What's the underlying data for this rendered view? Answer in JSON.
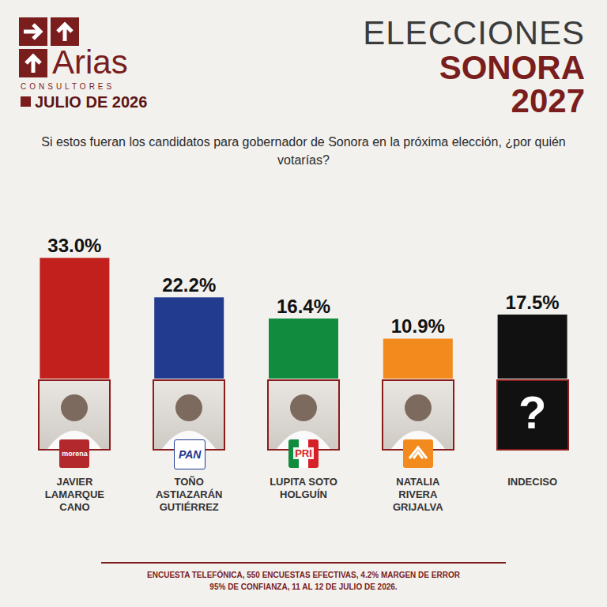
{
  "header": {
    "brand": "Arias",
    "brand_sub": "CONSULTORES",
    "date": "JULIO DE 2026",
    "title_lines": [
      "ELECCIONES",
      "SONORA",
      "2027"
    ]
  },
  "question": "Si estos fueran los candidatos para gobernador de Sonora en la próxima elección, ¿por quién votarías?",
  "chart_data": {
    "type": "bar",
    "categories": [
      "JAVIER LAMARQUE CANO",
      "TOÑO ASTIAZARÁN GUTIÉRREZ",
      "LUPITA SOTO HOLGUÍN",
      "NATALIA RIVERA GRIJALVA",
      "INDECISO"
    ],
    "values": [
      33.0,
      22.2,
      16.4,
      10.9,
      17.5
    ],
    "value_labels": [
      "33.0%",
      "22.2%",
      "16.4%",
      "10.9%",
      "17.5%"
    ],
    "colors": [
      "#c1201d",
      "#223b8f",
      "#118c3e",
      "#f28a1e",
      "#111111"
    ],
    "parties": [
      "morena",
      "PAN",
      "PRI",
      null,
      null
    ],
    "placeholder_labels": [
      null,
      null,
      null,
      null,
      "?"
    ],
    "ylim": [
      0,
      35
    ],
    "yticks": [
      0,
      35
    ],
    "data_labels": true,
    "tick_labels": "x",
    "grid": false
  },
  "footer": [
    "ENCUESTA TELEFÓNICA, 550 ENCUESTAS EFECTIVAS, 4.2%  MARGEN DE ERROR",
    "95% DE CONFIANZA, 11 AL 12 DE JULIO DE 2026."
  ]
}
